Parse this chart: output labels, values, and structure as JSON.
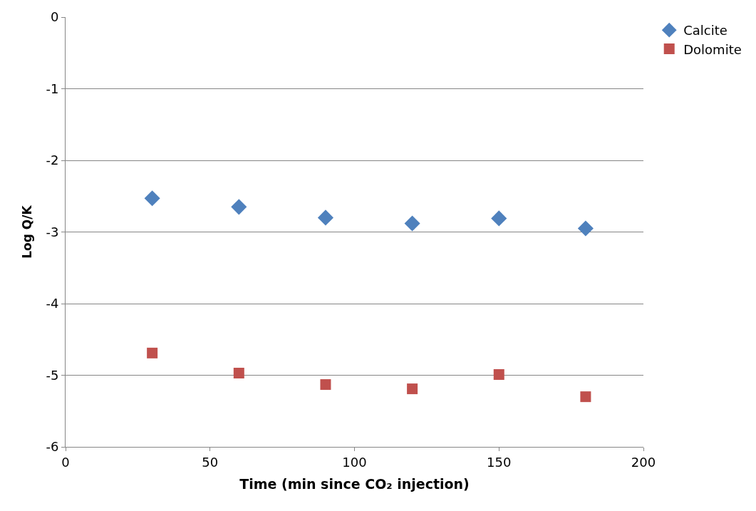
{
  "chart_data": {
    "type": "scatter",
    "xlabel": "Time (min since CO₂ injection)",
    "ylabel": "Log Q/K",
    "x": [
      30,
      60,
      90,
      120,
      150,
      180
    ],
    "series": [
      {
        "name": "Calcite",
        "color": "#4f81bd",
        "marker": "diamond",
        "values": [
          -2.53,
          -2.65,
          -2.8,
          -2.88,
          -2.81,
          -2.95
        ]
      },
      {
        "name": "Dolomite",
        "color": "#c0504d",
        "marker": "square",
        "values": [
          -4.69,
          -4.97,
          -5.13,
          -5.19,
          -4.99,
          -5.3
        ]
      }
    ],
    "xlim": [
      0,
      200
    ],
    "xticks": [
      0,
      50,
      100,
      150,
      200
    ],
    "ylim": [
      -6,
      0
    ],
    "yticks": [
      -6,
      -5,
      -4,
      -3,
      -2,
      -1,
      0
    ],
    "grid": "y",
    "legend": "top right"
  }
}
